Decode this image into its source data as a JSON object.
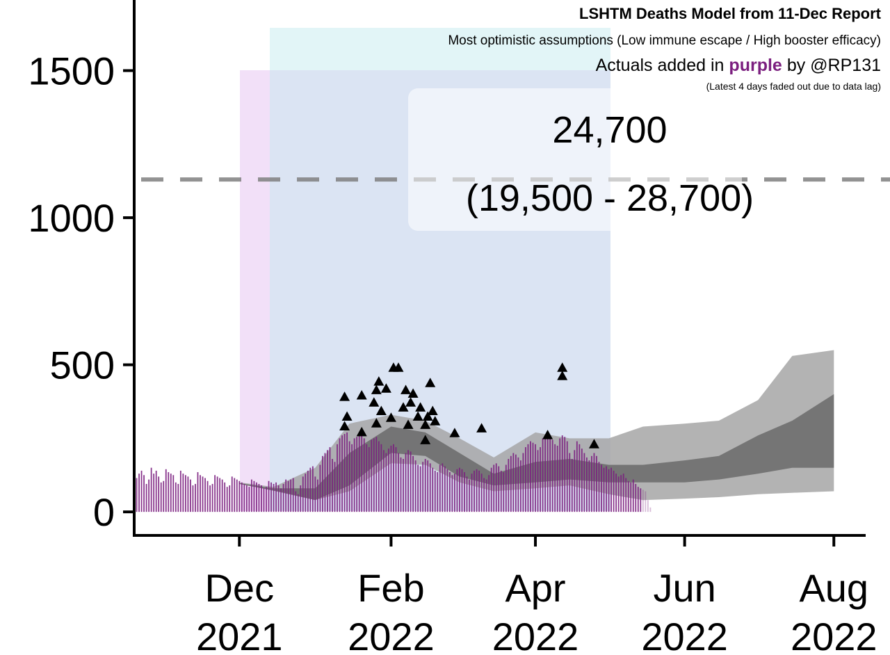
{
  "chart_data": {
    "type": "combo",
    "title": "LSHTM Deaths Model from 11-Dec Report",
    "subtitle": "Most optimistic assumptions (Low immune escape / High booster efficacy)",
    "caption_parts": [
      "Actuals added in",
      "purple",
      "by @RP131"
    ],
    "note": "(Latest 4 days faded out due to data lag)",
    "faded_days": 4,
    "annotation": {
      "total": "24,700",
      "range": "(19,500 - 28,700)"
    },
    "reference_line": 1130,
    "xlim": [
      "2021-10-19",
      "2022-08-14"
    ],
    "ylim": [
      -80,
      1740
    ],
    "yticks": [
      0,
      500,
      1000,
      1500
    ],
    "xticks": [
      {
        "value": "2021-12-01",
        "label": [
          "Dec",
          "2021"
        ]
      },
      {
        "value": "2022-02-01",
        "label": [
          "Feb",
          "2022"
        ]
      },
      {
        "value": "2022-04-01",
        "label": [
          "Apr",
          "2022"
        ]
      },
      {
        "value": "2022-06-01",
        "label": [
          "Jun",
          "2022"
        ]
      },
      {
        "value": "2022-08-01",
        "label": [
          "Aug",
          "2022"
        ]
      }
    ],
    "band_x": [
      "2021-12-01",
      "2021-12-15",
      "2022-01-01",
      "2022-01-15",
      "2022-02-01",
      "2022-02-15",
      "2022-03-01",
      "2022-03-15",
      "2022-04-01",
      "2022-04-15",
      "2022-05-01",
      "2022-05-15",
      "2022-06-01",
      "2022-06-15",
      "2022-07-01",
      "2022-07-15",
      "2022-08-01"
    ],
    "bands": [
      {
        "color": "#a6a6a6",
        "upper": [
          100,
          85,
          150,
          300,
          330,
          310,
          250,
          185,
          270,
          250,
          250,
          290,
          300,
          310,
          380,
          530,
          550
        ],
        "lower": [
          95,
          75,
          40,
          70,
          165,
          160,
          100,
          70,
          80,
          90,
          60,
          40,
          45,
          50,
          60,
          65,
          70
        ]
      },
      {
        "color": "#6a6a6a",
        "upper": [
          98,
          80,
          80,
          200,
          290,
          270,
          200,
          130,
          170,
          180,
          160,
          160,
          175,
          190,
          260,
          310,
          400
        ],
        "lower": [
          95,
          72,
          40,
          90,
          200,
          190,
          120,
          90,
          100,
          110,
          100,
          100,
          100,
          110,
          130,
          150,
          150
        ]
      }
    ],
    "points": {
      "color": "#000000",
      "x": [
        "2022-01-13",
        "2022-01-13",
        "2022-01-14",
        "2022-01-20",
        "2022-01-20",
        "2022-01-25",
        "2022-01-26",
        "2022-01-27",
        "2022-01-26",
        "2022-01-28",
        "2022-01-30",
        "2022-02-01",
        "2022-02-02",
        "2022-02-04",
        "2022-02-06",
        "2022-02-07",
        "2022-02-08",
        "2022-02-09",
        "2022-02-10",
        "2022-02-12",
        "2022-02-13",
        "2022-02-15",
        "2022-02-16",
        "2022-02-17",
        "2022-02-18",
        "2022-02-19",
        "2022-02-15",
        "2022-02-27",
        "2022-03-10",
        "2022-04-06",
        "2022-04-12",
        "2022-04-12",
        "2022-04-25"
      ],
      "values": [
        290,
        390,
        323,
        395,
        270,
        371,
        413,
        442,
        300,
        342,
        418,
        319,
        489,
        489,
        354,
        413,
        295,
        371,
        401,
        323,
        354,
        295,
        323,
        437,
        342,
        307,
        243,
        267,
        283,
        260,
        489,
        461,
        229
      ]
    },
    "actuals": {
      "color": "#7b1f7f",
      "x": [
        "2021-10-20",
        "2021-10-21",
        "2021-10-22",
        "2021-10-23",
        "2021-10-24",
        "2021-10-25",
        "2021-10-26",
        "2021-10-27",
        "2021-10-28",
        "2021-10-29",
        "2021-10-30",
        "2021-10-31",
        "2021-11-01",
        "2021-11-02",
        "2021-11-03",
        "2021-11-04",
        "2021-11-05",
        "2021-11-06",
        "2021-11-07",
        "2021-11-08",
        "2021-11-09",
        "2021-11-10",
        "2021-11-11",
        "2021-11-12",
        "2021-11-13",
        "2021-11-14",
        "2021-11-15",
        "2021-11-16",
        "2021-11-17",
        "2021-11-18",
        "2021-11-19",
        "2021-11-20",
        "2021-11-21",
        "2021-11-22",
        "2021-11-23",
        "2021-11-24",
        "2021-11-25",
        "2021-11-26",
        "2021-11-27",
        "2021-11-28",
        "2021-11-29",
        "2021-11-30",
        "2021-12-01",
        "2021-12-02",
        "2021-12-03",
        "2021-12-04",
        "2021-12-05",
        "2021-12-06",
        "2021-12-07",
        "2021-12-08",
        "2021-12-09",
        "2021-12-10",
        "2021-12-11",
        "2021-12-12",
        "2021-12-13",
        "2021-12-14",
        "2021-12-15",
        "2021-12-16",
        "2021-12-17",
        "2021-12-18",
        "2021-12-19",
        "2021-12-20",
        "2021-12-21",
        "2021-12-22",
        "2021-12-23",
        "2021-12-24",
        "2021-12-25",
        "2021-12-26",
        "2021-12-27",
        "2021-12-28",
        "2021-12-29",
        "2021-12-30",
        "2021-12-31",
        "2022-01-01",
        "2022-01-02",
        "2022-01-03",
        "2022-01-04",
        "2022-01-05",
        "2022-01-06",
        "2022-01-07",
        "2022-01-08",
        "2022-01-09",
        "2022-01-10",
        "2022-01-11",
        "2022-01-12",
        "2022-01-13",
        "2022-01-14",
        "2022-01-15",
        "2022-01-16",
        "2022-01-17",
        "2022-01-18",
        "2022-01-19",
        "2022-01-20",
        "2022-01-21",
        "2022-01-22",
        "2022-01-23",
        "2022-01-24",
        "2022-01-25",
        "2022-01-26",
        "2022-01-27",
        "2022-01-28",
        "2022-01-29",
        "2022-01-30",
        "2022-01-31",
        "2022-02-01",
        "2022-02-02",
        "2022-02-03",
        "2022-02-04",
        "2022-02-05",
        "2022-02-06",
        "2022-02-07",
        "2022-02-08",
        "2022-02-09",
        "2022-02-10",
        "2022-02-11",
        "2022-02-12",
        "2022-02-13",
        "2022-02-14",
        "2022-02-15",
        "2022-02-16",
        "2022-02-17",
        "2022-02-18",
        "2022-02-19",
        "2022-02-20",
        "2022-02-21",
        "2022-02-22",
        "2022-02-23",
        "2022-02-24",
        "2022-02-25",
        "2022-02-26",
        "2022-02-27",
        "2022-02-28",
        "2022-03-01",
        "2022-03-02",
        "2022-03-03",
        "2022-03-04",
        "2022-03-05",
        "2022-03-06",
        "2022-03-07",
        "2022-03-08",
        "2022-03-09",
        "2022-03-10",
        "2022-03-11",
        "2022-03-12",
        "2022-03-13",
        "2022-03-14",
        "2022-03-15",
        "2022-03-16",
        "2022-03-17",
        "2022-03-18",
        "2022-03-19",
        "2022-03-20",
        "2022-03-21",
        "2022-03-22",
        "2022-03-23",
        "2022-03-24",
        "2022-03-25",
        "2022-03-26",
        "2022-03-27",
        "2022-03-28",
        "2022-03-29",
        "2022-03-30",
        "2022-03-31",
        "2022-04-01",
        "2022-04-02",
        "2022-04-03",
        "2022-04-04",
        "2022-04-05",
        "2022-04-06",
        "2022-04-07",
        "2022-04-08",
        "2022-04-09",
        "2022-04-10",
        "2022-04-11",
        "2022-04-12",
        "2022-04-13",
        "2022-04-14",
        "2022-04-15",
        "2022-04-16",
        "2022-04-17",
        "2022-04-18",
        "2022-04-19",
        "2022-04-20",
        "2022-04-21",
        "2022-04-22",
        "2022-04-23",
        "2022-04-24",
        "2022-04-25",
        "2022-04-26",
        "2022-04-27",
        "2022-04-28",
        "2022-04-29",
        "2022-04-30",
        "2022-05-01",
        "2022-05-02",
        "2022-05-03",
        "2022-05-04",
        "2022-05-05",
        "2022-05-06",
        "2022-05-07",
        "2022-05-08",
        "2022-05-09",
        "2022-05-10",
        "2022-05-11",
        "2022-05-12",
        "2022-05-13",
        "2022-05-14",
        "2022-05-15",
        "2022-05-16",
        "2022-05-17",
        "2022-05-18"
      ],
      "values": [
        115,
        130,
        140,
        125,
        95,
        110,
        150,
        130,
        140,
        120,
        100,
        105,
        145,
        135,
        130,
        125,
        100,
        95,
        140,
        130,
        125,
        120,
        110,
        90,
        95,
        135,
        125,
        120,
        115,
        105,
        90,
        95,
        125,
        120,
        115,
        110,
        100,
        85,
        90,
        120,
        115,
        110,
        105,
        100,
        95,
        90,
        85,
        110,
        105,
        100,
        95,
        90,
        80,
        85,
        105,
        100,
        95,
        100,
        90,
        80,
        95,
        110,
        105,
        110,
        115,
        70,
        60,
        90,
        120,
        130,
        140,
        150,
        155,
        120,
        110,
        160,
        190,
        200,
        210,
        220,
        180,
        170,
        230,
        250,
        260,
        265,
        270,
        240,
        230,
        250,
        255,
        260,
        265,
        250,
        230,
        220,
        245,
        250,
        255,
        240,
        230,
        210,
        200,
        215,
        225,
        230,
        220,
        200,
        185,
        180,
        200,
        210,
        205,
        190,
        175,
        160,
        155,
        170,
        180,
        175,
        165,
        150,
        140,
        135,
        160,
        165,
        155,
        145,
        135,
        125,
        130,
        145,
        150,
        145,
        135,
        120,
        110,
        130,
        140,
        145,
        140,
        130,
        115,
        110,
        125,
        150,
        160,
        165,
        155,
        140,
        135,
        160,
        180,
        190,
        200,
        195,
        185,
        175,
        200,
        220,
        230,
        240,
        235,
        230,
        210,
        220,
        250,
        260,
        265,
        255,
        245,
        230,
        225,
        250,
        260,
        255,
        240,
        200,
        180,
        210,
        240,
        230,
        215,
        200,
        185,
        175,
        190,
        200,
        190,
        170,
        160,
        150,
        155,
        145,
        150,
        140,
        130,
        120,
        125,
        130,
        115,
        105,
        100,
        110,
        95,
        85,
        80,
        75,
        70,
        40,
        15
      ]
    }
  }
}
